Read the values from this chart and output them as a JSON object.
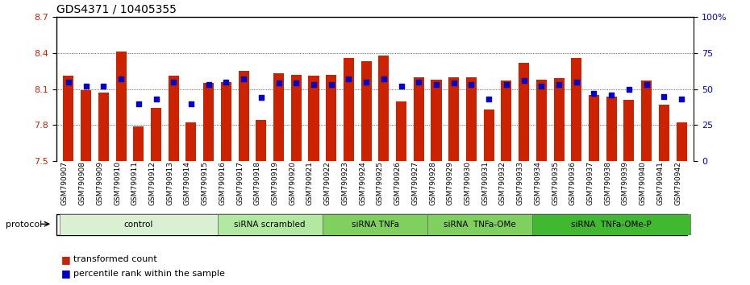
{
  "title": "GDS4371 / 10405355",
  "ylim_left": [
    7.5,
    8.7
  ],
  "ylim_right": [
    0,
    100
  ],
  "yticks_left": [
    7.5,
    7.8,
    8.1,
    8.4,
    8.7
  ],
  "yticks_right": [
    0,
    25,
    50,
    75,
    100
  ],
  "ytick_labels_right": [
    "0",
    "25",
    "50",
    "75",
    "100%"
  ],
  "samples": [
    "GSM790907",
    "GSM790908",
    "GSM790909",
    "GSM790910",
    "GSM790911",
    "GSM790912",
    "GSM790913",
    "GSM790914",
    "GSM790915",
    "GSM790916",
    "GSM790917",
    "GSM790918",
    "GSM790919",
    "GSM790920",
    "GSM790921",
    "GSM790922",
    "GSM790923",
    "GSM790924",
    "GSM790925",
    "GSM790926",
    "GSM790927",
    "GSM790928",
    "GSM790929",
    "GSM790930",
    "GSM790931",
    "GSM790932",
    "GSM790933",
    "GSM790934",
    "GSM790935",
    "GSM790936",
    "GSM790937",
    "GSM790938",
    "GSM790939",
    "GSM790940",
    "GSM790941",
    "GSM790942"
  ],
  "bar_values": [
    8.21,
    8.09,
    8.07,
    8.41,
    7.79,
    7.94,
    8.21,
    7.82,
    8.15,
    8.16,
    8.25,
    7.84,
    8.23,
    8.22,
    8.21,
    8.22,
    8.36,
    8.33,
    8.38,
    8.0,
    8.2,
    8.18,
    8.2,
    8.2,
    7.93,
    8.17,
    8.32,
    8.18,
    8.19,
    8.36,
    8.05,
    8.04,
    8.01,
    8.17,
    7.97,
    7.82
  ],
  "percentile_values": [
    55,
    52,
    52,
    57,
    40,
    43,
    55,
    40,
    53,
    55,
    57,
    44,
    54,
    54,
    53,
    53,
    57,
    55,
    57,
    52,
    55,
    53,
    54,
    53,
    43,
    53,
    56,
    52,
    53,
    55,
    47,
    46,
    50,
    53,
    45,
    43
  ],
  "groups": [
    {
      "label": "control",
      "start": 0,
      "end": 9,
      "color": "#d9f0d3"
    },
    {
      "label": "siRNA scrambled",
      "start": 9,
      "end": 15,
      "color": "#b3e8a0"
    },
    {
      "label": "siRNA TNFa",
      "start": 15,
      "end": 21,
      "color": "#80d060"
    },
    {
      "label": "siRNA  TNFa-OMe",
      "start": 21,
      "end": 27,
      "color": "#80d060"
    },
    {
      "label": "siRNA  TNFa-OMe-P",
      "start": 27,
      "end": 36,
      "color": "#40b830"
    }
  ],
  "bar_color": "#cc2200",
  "dot_color": "#0000cc",
  "protocol_label": "protocol"
}
